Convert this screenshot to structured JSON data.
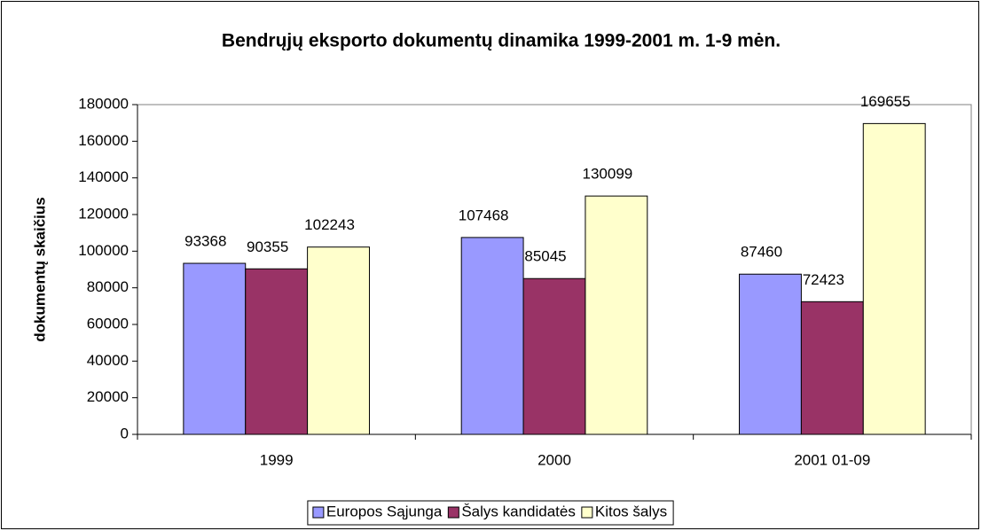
{
  "chart_data": {
    "type": "bar",
    "title": "Bendrųjų eksporto dokumentų dinamika 1999-2001 m. 1-9 mėn.",
    "y_label": "dokumentų skaičius",
    "categories": [
      "1999",
      "2000",
      "2001 01-09"
    ],
    "series": [
      {
        "name": "Europos Sąjunga",
        "color": "#9999ff",
        "values": [
          93368,
          107468,
          87460
        ]
      },
      {
        "name": "Šalys kandidatės",
        "color": "#993366",
        "values": [
          90355,
          85045,
          72423
        ]
      },
      {
        "name": "Kitos šalys",
        "color": "#ffffcc",
        "values": [
          102243,
          130099,
          169655
        ]
      }
    ],
    "ylim": [
      0,
      180000
    ],
    "yticks": [
      0,
      20000,
      40000,
      60000,
      80000,
      100000,
      120000,
      140000,
      160000,
      180000
    ],
    "legend": "bottom"
  }
}
